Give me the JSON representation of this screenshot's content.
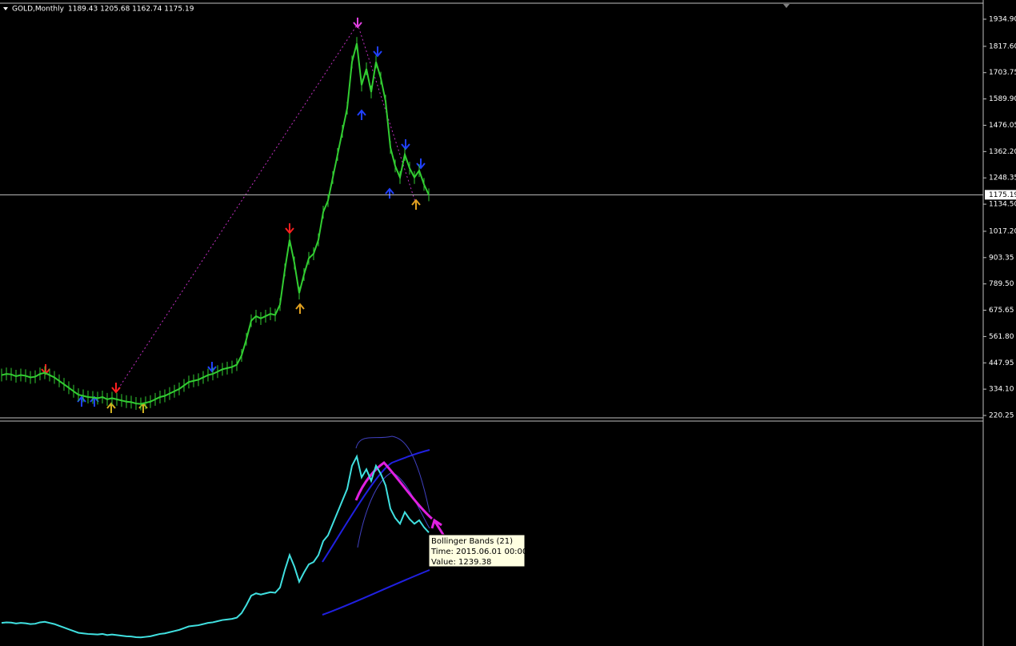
{
  "chart_data": {
    "type": "line",
    "symbol": "GOLD,Monthly",
    "ohlc": "1189.43 1205.68 1162.74 1175.19",
    "color": "#32cd32",
    "indicator_color": "#40e0e0",
    "values": [
      395,
      400,
      398,
      390,
      395,
      392,
      385,
      388,
      400,
      405,
      395,
      385,
      370,
      355,
      340,
      325,
      310,
      305,
      300,
      298,
      295,
      300,
      290,
      295,
      290,
      285,
      280,
      278,
      272,
      270,
      275,
      280,
      290,
      300,
      305,
      315,
      325,
      335,
      350,
      365,
      370,
      375,
      385,
      395,
      400,
      410,
      420,
      425,
      430,
      440,
      480,
      550,
      630,
      650,
      640,
      650,
      660,
      655,
      700,
      850,
      980,
      880,
      750,
      830,
      900,
      920,
      980,
      1100,
      1150,
      1250,
      1350,
      1450,
      1550,
      1750,
      1830,
      1650,
      1720,
      1620,
      1750,
      1680,
      1580,
      1380,
      1300,
      1250,
      1350,
      1290,
      1250,
      1280,
      1220,
      1175
    ],
    "current_price": {
      "value": 1175.19,
      "label": "1175.19"
    },
    "ylim": [
      209.86,
      2004.2
    ],
    "yticks": [
      {
        "value": 1934.9,
        "label": "1934.90"
      },
      {
        "value": 1817.6,
        "label": "1817.60"
      },
      {
        "value": 1703.75,
        "label": "1703.75"
      },
      {
        "value": 1589.9,
        "label": "1589.90"
      },
      {
        "value": 1476.05,
        "label": "1476.05"
      },
      {
        "value": 1362.2,
        "label": "1362.20"
      },
      {
        "value": 1248.35,
        "label": "1248.35"
      },
      {
        "value": 1134.5,
        "label": "1134.50"
      },
      {
        "value": 1017.2,
        "label": "1017.20"
      },
      {
        "value": 903.35,
        "label": "903.35"
      },
      {
        "value": 789.5,
        "label": "789.50"
      },
      {
        "value": 675.65,
        "label": "675.65"
      },
      {
        "value": 561.8,
        "label": "561.80"
      },
      {
        "value": 447.95,
        "label": "447.95"
      },
      {
        "value": 334.1,
        "label": "334.10"
      },
      {
        "value": 220.25,
        "label": "220.25"
      }
    ],
    "tooltip": {
      "name": "Bollinger Bands (21)",
      "time": "Time: 2015.06.01 00:00",
      "value": "Value: 1239.38"
    }
  }
}
